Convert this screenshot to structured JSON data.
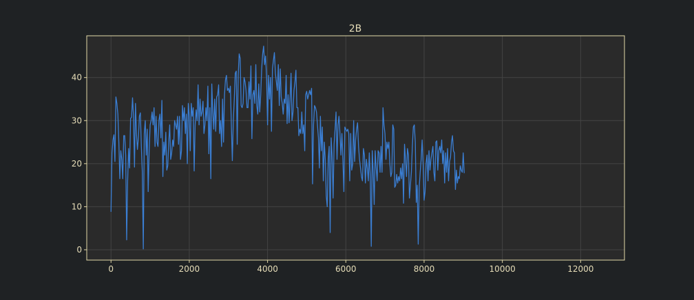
{
  "theme": {
    "background": "#1f2224",
    "plot_background": "#2a2a2a",
    "frame_color": "#e3d9a8",
    "grid_color": "#444444",
    "text_color": "#e6ddb8",
    "line_color": "#3b7fd4"
  },
  "chart_data": {
    "type": "line",
    "title": "2B",
    "xlabel": "",
    "ylabel": "",
    "xlim": [
      -620,
      13120
    ],
    "ylim": [
      -2.4,
      49.7
    ],
    "grid": true,
    "x_ticks": [
      0,
      2000,
      4000,
      6000,
      8000,
      10000,
      12000
    ],
    "x_tick_labels": [
      "0",
      "2000",
      "4000",
      "6000",
      "8000",
      "10000",
      "12000"
    ],
    "y_ticks": [
      0,
      10,
      20,
      30,
      40
    ],
    "y_tick_labels": [
      "0",
      "10",
      "20",
      "30",
      "40"
    ],
    "series": [
      {
        "x_start": 0,
        "x_step": 25,
        "values": [
          8.8,
          22.5,
          25.5,
          26.7,
          20.5,
          35.5,
          34.0,
          31.5,
          25.0,
          16.5,
          23.0,
          21.0,
          16.5,
          26.5,
          26.5,
          22.0,
          2.3,
          16.0,
          23.5,
          19.0,
          30.5,
          30.8,
          35.3,
          31.0,
          19.2,
          34.0,
          27.0,
          23.3,
          26.0,
          31.0,
          31.8,
          24.0,
          18.0,
          0.2,
          27.0,
          30.0,
          22.0,
          28.0,
          13.5,
          23.0,
          29.0,
          30.0,
          32.0,
          29.0,
          33.0,
          24.0,
          31.0,
          25.0,
          24.0,
          30.0,
          31.5,
          26.0,
          34.7,
          17.0,
          25.0,
          22.0,
          27.3,
          18.5,
          19.5,
          25.0,
          29.0,
          21.0,
          22.5,
          25.5,
          24.0,
          30.0,
          29.0,
          28.0,
          31.0,
          24.5,
          31.0,
          21.0,
          23.0,
          33.5,
          30.0,
          33.0,
          27.0,
          31.5,
          20.0,
          34.0,
          31.0,
          23.0,
          34.0,
          31.0,
          33.0,
          18.3,
          29.0,
          32.5,
          30.0,
          38.3,
          29.0,
          35.0,
          31.0,
          32.0,
          34.5,
          27.0,
          29.0,
          33.0,
          30.0,
          38.0,
          22.3,
          33.0,
          16.5,
          38.5,
          32.0,
          28.0,
          35.0,
          27.5,
          35.5,
          36.0,
          38.3,
          27.0,
          30.0,
          24.0,
          35.0,
          25.0,
          36.0,
          39.5,
          40.5,
          37.0,
          37.5,
          36.5,
          38.0,
          29.0,
          20.7,
          30.0,
          35.0,
          41.0,
          41.5,
          24.5,
          40.5,
          45.5,
          44.5,
          33.5,
          33.0,
          34.0,
          40.0,
          39.0,
          37.0,
          33.0,
          33.0,
          39.0,
          35.0,
          42.7,
          25.8,
          36.0,
          37.0,
          34.0,
          43.0,
          33.5,
          31.5,
          38.5,
          32.0,
          36.0,
          42.0,
          45.5,
          47.3,
          43.0,
          45.0,
          40.0,
          29.0,
          40.5,
          35.0,
          40.0,
          27.5,
          42.0,
          44.0,
          45.8,
          41.0,
          39.0,
          37.0,
          43.0,
          33.5,
          42.0,
          35.5,
          34.0,
          31.5,
          35.0,
          34.0,
          40.5,
          29.3,
          36.0,
          29.5,
          35.0,
          41.0,
          30.0,
          32.0,
          37.0,
          39.0,
          41.7,
          33.0,
          33.0,
          26.5,
          28.0,
          27.0,
          32.0,
          27.0,
          29.0,
          23.0,
          36.0,
          36.8,
          35.0,
          36.0,
          37.0,
          36.0,
          37.5,
          15.3,
          29.0,
          33.5,
          33.0,
          32.0,
          29.0,
          26.0,
          19.0,
          31.0,
          23.0,
          28.5,
          16.0,
          25.0,
          21.0,
          12.5,
          10.0,
          21.0,
          24.0,
          4.0,
          26.0,
          21.5,
          12.0,
          24.5,
          28.0,
          32.0,
          21.0,
          29.0,
          31.0,
          27.0,
          22.0,
          27.0,
          21.0,
          13.5,
          28.5,
          28.0,
          27.5,
          28.0,
          27.0,
          16.0,
          27.0,
          18.5,
          20.0,
          30.0,
          20.5,
          25.5,
          28.0,
          29.5,
          24.0,
          21.0,
          19.0,
          17.0,
          16.0,
          23.5,
          22.0,
          15.5,
          21.0,
          19.0,
          16.0,
          22.5,
          17.0,
          0.8,
          23.0,
          18.0,
          10.5,
          23.0,
          19.0,
          16.0,
          23.0,
          22.5,
          18.0,
          24.0,
          18.0,
          33.0,
          29.0,
          27.0,
          21.0,
          25.0,
          23.5,
          25.0,
          20.0,
          17.0,
          18.0,
          29.0,
          28.0,
          14.5,
          15.0,
          17.5,
          15.5,
          17.0,
          16.0,
          19.0,
          16.5,
          20.0,
          10.8,
          24.5,
          21.0,
          17.0,
          23.5,
          22.0,
          12.0,
          15.0,
          18.0,
          24.0,
          28.5,
          29.0,
          25.0,
          11.0,
          15.0,
          1.3,
          14.5,
          18.0,
          21.0,
          25.5,
          20.0,
          11.5,
          13.5,
          20.0,
          22.0,
          16.0,
          23.0,
          18.5,
          21.0,
          22.5,
          24.0,
          18.0,
          16.0,
          25.0,
          25.3,
          18.5,
          23.0,
          24.0,
          22.5,
          25.5,
          20.0,
          23.0,
          15.5,
          22.5,
          18.0,
          23.5,
          16.0,
          20.5,
          21.5,
          25.0,
          26.5,
          23.0,
          22.5,
          14.0,
          18.5,
          15.5,
          17.0,
          16.5,
          19.5,
          18.5,
          18.0,
          22.5,
          17.8
        ]
      }
    ]
  }
}
